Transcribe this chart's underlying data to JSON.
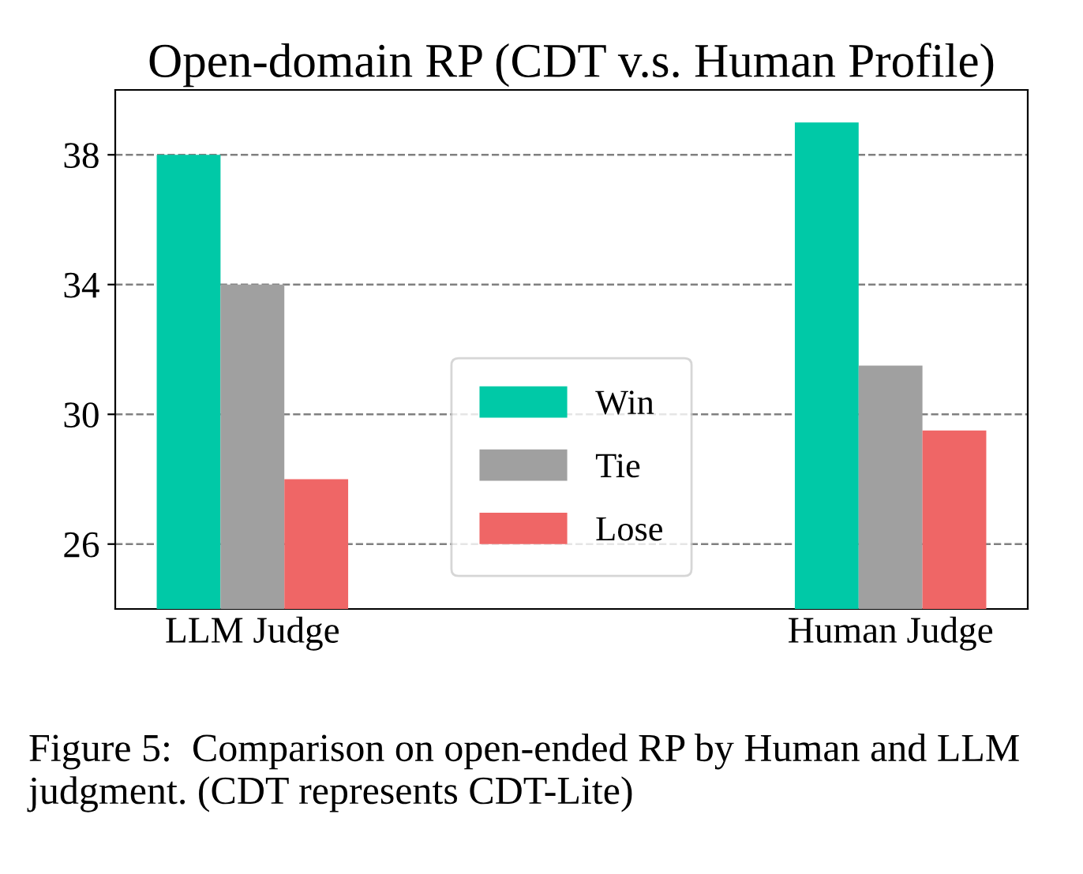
{
  "chart_data": {
    "type": "bar",
    "title": "Open-domain RP (CDT v.s. Human Profile)",
    "categories": [
      "LLM Judge",
      "Human Judge"
    ],
    "series": [
      {
        "name": "Win",
        "color": "#00c9a7",
        "values": [
          38,
          39
        ]
      },
      {
        "name": "Tie",
        "color": "#a0a0a0",
        "values": [
          34,
          31.5
        ]
      },
      {
        "name": "Lose",
        "color": "#ef6666",
        "values": [
          28,
          29.5
        ]
      }
    ],
    "ylim": [
      24,
      40
    ],
    "yticks": [
      26,
      30,
      34,
      38
    ],
    "grid": "y",
    "legend": "bottom",
    "annotations": [
      "Figure 5:  Comparison on open-ended RP by Human and LLM judgment. (CDT represents CDT-Lite)"
    ]
  }
}
